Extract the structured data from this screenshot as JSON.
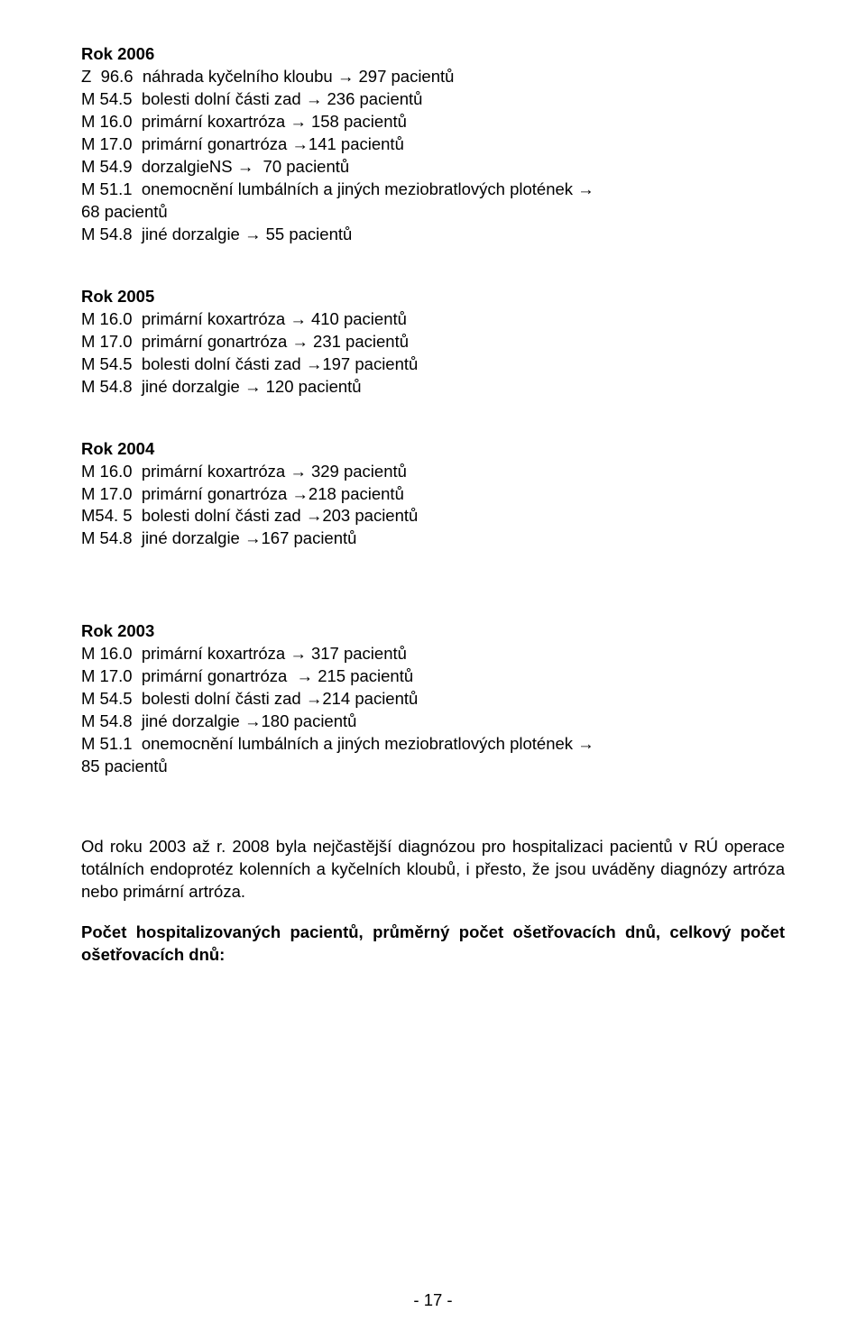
{
  "arrow": "→",
  "sections": {
    "y2006": {
      "title": "Rok 2006",
      "lines": [
        "Z  96.6  náhrada kyčelního kloubu → 297 pacientů",
        "M 54.5  bolesti dolní části zad → 236 pacientů",
        "M 16.0  primární koxartróza → 158 pacientů",
        "M 17.0  primární gonartróza →141 pacientů",
        "M 54.9  dorzalgieNS →  70 pacientů",
        "M 51.1  onemocnění lumbálních a jiných meziobratlových plotének →",
        "68 pacientů",
        "M 54.8  jiné dorzalgie → 55 pacientů"
      ]
    },
    "y2005": {
      "title": "Rok 2005",
      "lines": [
        "M 16.0  primární koxartróza → 410 pacientů",
        "M 17.0  primární gonartróza → 231 pacientů",
        "M 54.5  bolesti dolní části zad →197 pacientů",
        "M 54.8  jiné dorzalgie → 120 pacientů"
      ]
    },
    "y2004": {
      "title": "Rok 2004",
      "lines": [
        "M 16.0  primární koxartróza → 329 pacientů",
        "M 17.0  primární gonartróza →218 pacientů",
        "M54. 5  bolesti dolní části zad →203 pacientů",
        "M 54.8  jiné dorzalgie →167 pacientů"
      ]
    },
    "y2003": {
      "title": "Rok 2003",
      "lines": [
        "M 16.0  primární koxartróza → 317 pacientů",
        "M 17.0  primární gonartróza  → 215 pacientů",
        "M 54.5  bolesti dolní části zad →214 pacientů",
        "M 54.8  jiné dorzalgie →180 pacientů",
        "M 51.1  onemocnění lumbálních a jiných meziobratlových plotének →",
        "85 pacientů"
      ]
    }
  },
  "paragraph": "Od roku 2003 až r. 2008 byla nejčastější diagnózou pro hospitalizaci pacientů v RÚ operace totálních endoprotéz kolenních a kyčelních kloubů, i přesto, že jsou uváděny diagnózy artróza nebo primární artróza.",
  "bold_footer": "Počet hospitalizovaných pacientů, průměrný počet ošetřovacích dnů, celkový počet ošetřovacích dnů:",
  "page_number": "- 17 -"
}
